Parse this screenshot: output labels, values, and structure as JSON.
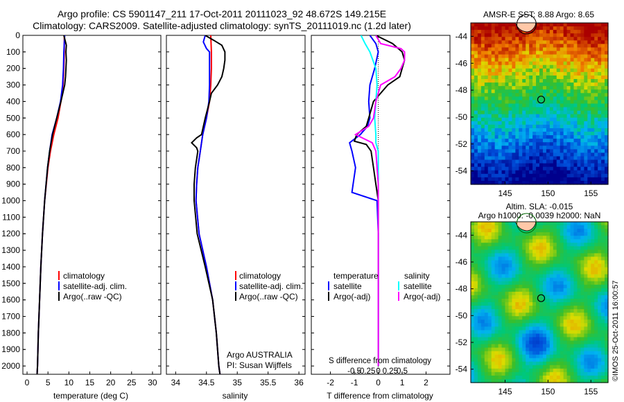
{
  "header": {
    "line1": "Argo profile: CS 5901147_211 17-Oct-2011 20111023_92 48.672S 149.215E",
    "line2": "Climatology: CARS2009. Satellite-adjusted climatology: synTS_20111019.nc (1.2d later)"
  },
  "colors": {
    "climatology": "#ff0000",
    "satellite": "#0000ff",
    "argo": "#000000",
    "salinity_satellite": "#00ffff",
    "salinity_argo": "#ff00ff"
  },
  "panel1": {
    "xlabel": "temperature (deg C)",
    "legend": [
      "climatology",
      "satellite-adj. clim.",
      "Argo(..raw -QC)"
    ]
  },
  "panel2": {
    "xlabel": "salinity",
    "legend": [
      "climatology",
      "satellite-adj. clim.",
      "Argo(..raw -QC)"
    ],
    "credit1": "Argo AUSTRALIA",
    "credit2": "PI: Susan Wijffels"
  },
  "panel3": {
    "xlabel": "T difference from climatology",
    "toplabel": "S difference from climatology",
    "legend_t_title": "temperature",
    "legend_s_title": "salinity",
    "legend_t": [
      "satellite",
      "Argo(-adj)"
    ],
    "legend_s": [
      "satellite",
      "Argo(-adj)"
    ]
  },
  "map1": {
    "title": "AMSR-E SST: 8.88 Argo: 8.65"
  },
  "map2": {
    "title1": "Altim. SLA: -0.015",
    "title2": "Argo h1000: -0.0039 h2000: NaN"
  },
  "stamp": "©IMOS 25-Oct-2011 16:00:57",
  "chart_data": [
    {
      "type": "line",
      "x_axis": "temperature (deg C)",
      "xlim": [
        -1,
        32
      ],
      "xticks": [
        0,
        5,
        10,
        15,
        20,
        25,
        30
      ],
      "ylim": [
        2050,
        0
      ],
      "yticks": [
        0,
        100,
        200,
        300,
        400,
        500,
        600,
        700,
        800,
        900,
        1000,
        1100,
        1200,
        1300,
        1400,
        1500,
        1600,
        1700,
        1800,
        1900,
        2000
      ],
      "series": [
        {
          "name": "climatology",
          "color": "#ff0000",
          "depth": [
            0,
            100,
            200,
            300,
            400,
            500,
            600,
            700,
            800,
            1000,
            1200,
            1400,
            1600,
            1800,
            2000,
            2050
          ],
          "values": [
            8.9,
            8.9,
            8.8,
            8.6,
            8.1,
            7.4,
            6.4,
            5.6,
            5.0,
            4.2,
            3.7,
            3.3,
            3.0,
            2.7,
            2.5,
            2.4
          ]
        },
        {
          "name": "satellite-adj. clim.",
          "color": "#0000ff",
          "depth": [
            0,
            50,
            100,
            200,
            300,
            400,
            500,
            600,
            700,
            800,
            1000,
            1200,
            1400,
            1600,
            1800,
            2000,
            2050
          ],
          "values": [
            9.0,
            8.9,
            8.8,
            8.7,
            8.5,
            8.0,
            7.1,
            6.0,
            5.4,
            4.9,
            4.2,
            3.7,
            3.3,
            3.0,
            2.7,
            2.5,
            2.4
          ]
        },
        {
          "name": "Argo(..raw -QC)",
          "color": "#000000",
          "depth": [
            0,
            30,
            60,
            100,
            150,
            200,
            250,
            300,
            400,
            500,
            600,
            700,
            800,
            1000,
            1200,
            1400,
            1600,
            1800,
            2000,
            2050
          ],
          "values": [
            8.8,
            9.1,
            9.4,
            9.3,
            9.4,
            9.3,
            9.2,
            9.0,
            8.1,
            7.1,
            6.1,
            5.4,
            4.9,
            4.2,
            3.7,
            3.3,
            3.0,
            2.7,
            2.5,
            2.4
          ]
        }
      ]
    },
    {
      "type": "line",
      "x_axis": "salinity",
      "xlim": [
        33.85,
        36.1
      ],
      "xticks": [
        34,
        34.5,
        35,
        35.5,
        36
      ],
      "ylim": [
        2050,
        0
      ],
      "series": [
        {
          "name": "climatology",
          "color": "#ff0000",
          "depth": [
            0,
            100,
            200,
            300,
            400,
            500,
            600,
            700,
            800,
            900,
            1000,
            1200,
            1400,
            1600,
            1800,
            2000,
            2050
          ],
          "values": [
            34.57,
            34.58,
            34.58,
            34.57,
            34.55,
            34.5,
            34.44,
            34.4,
            34.36,
            34.34,
            34.33,
            34.38,
            34.5,
            34.6,
            34.66,
            34.7,
            34.72
          ]
        },
        {
          "name": "satellite-adj. clim.",
          "color": "#0000ff",
          "depth": [
            0,
            40,
            80,
            100,
            150,
            200,
            300,
            400,
            500,
            600,
            700,
            800,
            900,
            1000,
            1200,
            1400,
            1600,
            1800,
            2000,
            2050
          ],
          "values": [
            34.48,
            34.45,
            34.5,
            34.55,
            34.55,
            34.55,
            34.55,
            34.54,
            34.5,
            34.44,
            34.4,
            34.36,
            34.34,
            34.33,
            34.38,
            34.5,
            34.6,
            34.66,
            34.7,
            34.72
          ]
        },
        {
          "name": "Argo(..raw -QC)",
          "color": "#000000",
          "depth": [
            0,
            30,
            60,
            100,
            150,
            200,
            250,
            300,
            350,
            400,
            500,
            600,
            620,
            650,
            680,
            700,
            750,
            800,
            900,
            1000,
            1200,
            1400,
            1600,
            1800,
            2000,
            2050
          ],
          "values": [
            34.48,
            34.62,
            34.75,
            34.8,
            34.8,
            34.78,
            34.75,
            34.68,
            34.58,
            34.55,
            34.48,
            34.42,
            34.34,
            34.26,
            34.34,
            34.36,
            34.34,
            34.32,
            34.3,
            34.3,
            34.35,
            34.48,
            34.6,
            34.66,
            34.7,
            34.72
          ]
        }
      ]
    },
    {
      "type": "line",
      "x_axis": "T difference from climatology",
      "xlim": [
        -2.8,
        3.0
      ],
      "xticks": [
        -2,
        -1,
        0,
        1,
        2
      ],
      "top_axis": "S difference from climatology",
      "top_ticks": [
        -0.5,
        -0.25,
        0,
        0.25,
        0.5
      ],
      "ylim": [
        2050,
        0
      ],
      "series": [
        {
          "name": "satellite",
          "group": "temperature",
          "color": "#0000ff",
          "depth": [
            0,
            50,
            100,
            200,
            300,
            400,
            500,
            550,
            600,
            650,
            700,
            800,
            900,
            950,
            1000,
            1200,
            1600,
            2000
          ],
          "values": [
            -0.35,
            -0.1,
            0.0,
            -0.15,
            -0.35,
            -0.4,
            -0.35,
            -0.45,
            -0.75,
            -1.2,
            -1.1,
            -0.95,
            -1.05,
            -1.1,
            -0.05,
            0.0,
            0.0,
            0.0
          ]
        },
        {
          "name": "Argo(-adj)",
          "group": "temperature",
          "color": "#000000",
          "depth": [
            0,
            50,
            100,
            150,
            200,
            250,
            300,
            400,
            500,
            550,
            600,
            640,
            660,
            700,
            800,
            900,
            1000,
            1200,
            1600,
            2000
          ],
          "values": [
            -0.1,
            0.6,
            1.0,
            1.1,
            1.0,
            0.9,
            0.4,
            -0.2,
            -0.4,
            -0.5,
            -0.9,
            -1.0,
            -0.5,
            -0.3,
            -0.2,
            -0.1,
            0.0,
            0.0,
            0.0,
            0.0
          ]
        },
        {
          "name": "satellite",
          "group": "salinity",
          "color": "#00ffff",
          "depth": [
            0,
            50,
            100,
            200,
            300,
            400,
            500,
            600,
            650,
            700,
            800,
            1000,
            1600,
            2000
          ],
          "values": [
            -0.72,
            -0.55,
            -0.35,
            -0.1,
            -0.05,
            -0.1,
            -0.15,
            -0.1,
            -0.1,
            0.0,
            0.0,
            0.0,
            0.0,
            0.0
          ]
        },
        {
          "name": "Argo(-adj)",
          "group": "salinity",
          "color": "#ff00ff",
          "depth": [
            0,
            50,
            80,
            100,
            150,
            200,
            250,
            300,
            400,
            500,
            550,
            600,
            650,
            700,
            800,
            900,
            1000,
            1200,
            1600,
            2000
          ],
          "values": [
            -0.1,
            0.1,
            0.95,
            1.1,
            1.1,
            0.95,
            0.7,
            0.1,
            -0.1,
            -0.2,
            -0.4,
            -0.95,
            -0.25,
            -0.1,
            -0.05,
            0.0,
            0.0,
            0.0,
            0.0,
            0.0
          ]
        }
      ]
    },
    {
      "type": "heatmap",
      "title": "AMSR-E SST: 8.88 Argo: 8.65",
      "xticks": [
        145,
        150,
        155
      ],
      "yticks": [
        -44,
        -46,
        -48,
        -50,
        -52,
        -54
      ],
      "xlim": [
        141,
        157
      ],
      "ylim": [
        -55,
        -43
      ],
      "argo_position": [
        149.2,
        -48.7
      ]
    },
    {
      "type": "heatmap",
      "title": "Altim. SLA: -0.015 / Argo h1000: -0.0039 h2000: NaN",
      "xticks": [
        145,
        150,
        155
      ],
      "yticks": [
        -44,
        -46,
        -48,
        -50,
        -52,
        -54
      ],
      "xlim": [
        141,
        157
      ],
      "ylim": [
        -55,
        -43
      ],
      "argo_position": [
        149.2,
        -48.7
      ]
    }
  ]
}
